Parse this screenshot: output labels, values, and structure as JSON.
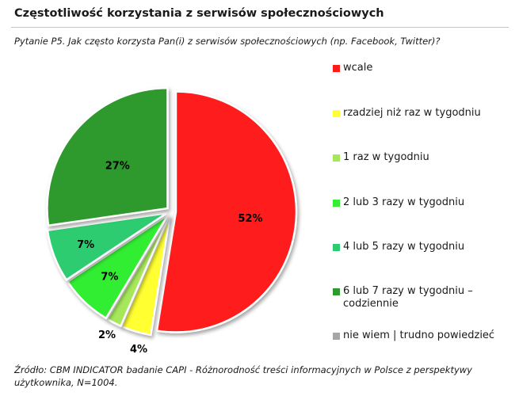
{
  "title": "Częstotliwość korzystania z serwisów społecznościowych",
  "question": "Pytanie P5. Jak często korzysta Pan(i) z serwisów społecznościowych (np. Facebook, Twitter)?",
  "source": "Źródło: CBM INDICATOR badanie CAPI - Różnorodność treści informacyjnych w Polsce z perspektywy użytkownika, N=1004.",
  "chart_data": {
    "type": "pie",
    "title": "Częstotliwość korzystania z serwisów społecznościowych",
    "categories": [
      "wcale",
      "rzadziej niż raz w tygodniu",
      "1 raz w tygodniu",
      "2 lub 3 razy w tygodniu",
      "4 lub 5 razy w tygodniu",
      "6 lub 7 razy w tygodniu – codziennie",
      "nie wiem | trudno powiedzieć"
    ],
    "values": [
      52,
      4,
      2,
      7,
      7,
      27,
      0
    ],
    "labels": [
      "52%",
      "4%",
      "2%",
      "7%",
      "7%",
      "27%",
      ""
    ],
    "colors": [
      "#ff1a1a",
      "#ffff33",
      "#a6e85a",
      "#33ee33",
      "#2ecc71",
      "#2d9a2d",
      "#a6a6a6"
    ],
    "legend": "right",
    "exploded": "all slices slightly separated"
  }
}
